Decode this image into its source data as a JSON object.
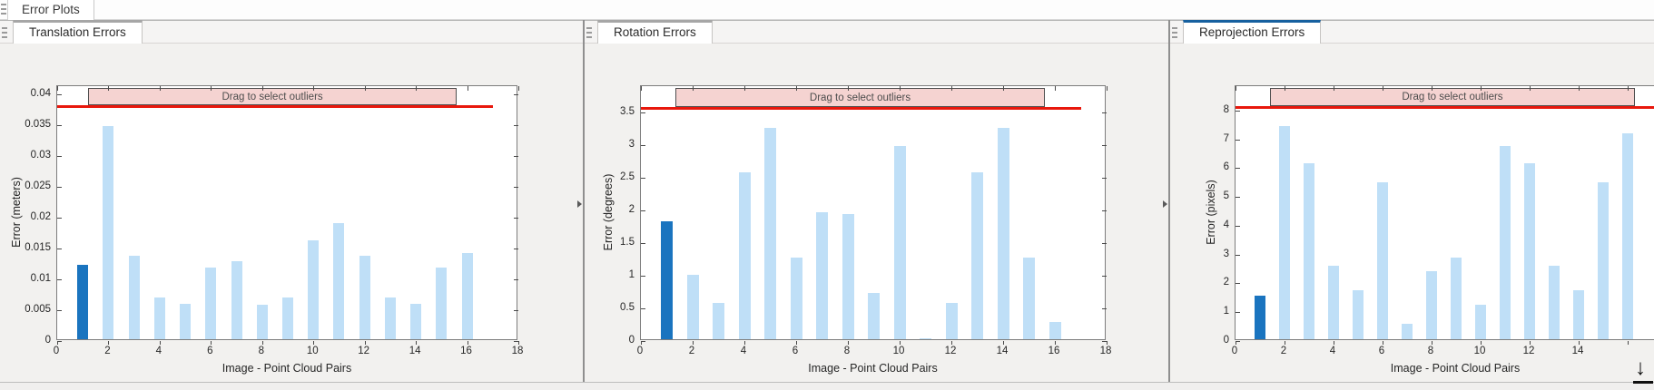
{
  "app_tab_bar": {
    "tab": "Error Plots"
  },
  "colors": {
    "bar": "#bfdff7",
    "bar_selected": "#1a74bf",
    "threshold_line": "#e8170c",
    "banner_fill": "#f5d3d1",
    "banner_border": "#4f4f4f",
    "active_tab_accent": "#16609f",
    "inactive_tab_accent": "#a6a6a6"
  },
  "export_icon": {
    "glyph": "↓"
  },
  "panels": [
    {
      "tab": "Translation Errors",
      "active": false,
      "chart_data": {
        "type": "bar",
        "xlabel": "Image - Point Cloud Pairs",
        "ylabel": "Error (meters)",
        "xlim": [
          0,
          18
        ],
        "ylim": [
          0,
          0.0413
        ],
        "x": [
          1,
          2,
          3,
          4,
          5,
          6,
          7,
          8,
          9,
          10,
          11,
          12,
          13,
          14,
          15,
          16
        ],
        "values": [
          0.0121,
          0.0346,
          0.0135,
          0.0067,
          0.0058,
          0.0116,
          0.0126,
          0.0056,
          0.0068,
          0.016,
          0.0188,
          0.0135,
          0.0067,
          0.0058,
          0.0116,
          0.014
        ],
        "selected_index": 0,
        "xticks": [
          0,
          2,
          4,
          6,
          8,
          10,
          12,
          14,
          16,
          18
        ],
        "xtick_labels": [
          "0",
          "2",
          "4",
          "6",
          "8",
          "10",
          "12",
          "14",
          "16",
          "18"
        ],
        "yticks": [
          0,
          0.005,
          0.01,
          0.015,
          0.02,
          0.025,
          0.03,
          0.035,
          0.04
        ],
        "ytick_labels": [
          "0",
          "0.005",
          "0.01",
          "0.015",
          "0.02",
          "0.025",
          "0.03",
          "0.035",
          "0.04"
        ],
        "threshold": {
          "value": 0.038,
          "x_start": 0,
          "x_end": 17.0
        },
        "banner": {
          "label": "Drag to select outliers",
          "x_start": 1.2,
          "x_end": 15.6
        }
      }
    },
    {
      "tab": "Rotation Errors",
      "active": false,
      "chart_data": {
        "type": "bar",
        "xlabel": "Image - Point Cloud Pairs",
        "ylabel": "Error (degrees)",
        "xlim": [
          0,
          18
        ],
        "ylim": [
          0,
          3.9
        ],
        "x": [
          1,
          2,
          3,
          4,
          5,
          6,
          7,
          8,
          9,
          10,
          11,
          12,
          13,
          14,
          15,
          16
        ],
        "values": [
          1.8,
          0.98,
          0.56,
          2.56,
          3.23,
          1.25,
          1.95,
          1.92,
          0.71,
          2.96,
          0.02,
          0.56,
          2.56,
          3.23,
          1.25,
          0.26
        ],
        "selected_index": 0,
        "xticks": [
          0,
          2,
          4,
          6,
          8,
          10,
          12,
          14,
          16,
          18
        ],
        "xtick_labels": [
          "0",
          "2",
          "4",
          "6",
          "8",
          "10",
          "12",
          "14",
          "16",
          "18"
        ],
        "yticks": [
          0,
          0.5,
          1,
          1.5,
          2,
          2.5,
          3,
          3.5
        ],
        "ytick_labels": [
          "0",
          "0.5",
          "1",
          "1.5",
          "2",
          "2.5",
          "3",
          "3.5"
        ],
        "threshold": {
          "value": 3.56,
          "x_start": 0,
          "x_end": 17.0
        },
        "banner": {
          "label": "Drag to select outliers",
          "x_start": 1.35,
          "x_end": 15.6
        }
      }
    },
    {
      "tab": "Reprojection Errors",
      "active": true,
      "chart_data": {
        "type": "bar",
        "xlabel": "Image - Point Cloud Pairs",
        "ylabel": "Error (pixels)",
        "xlim": [
          0,
          18
        ],
        "ylim": [
          0,
          8.85
        ],
        "x": [
          1,
          2,
          3,
          4,
          5,
          6,
          7,
          8,
          9,
          10,
          11,
          12,
          13,
          14,
          15,
          16
        ],
        "values": [
          1.5,
          7.4,
          6.1,
          2.55,
          1.7,
          5.45,
          0.55,
          2.35,
          2.85,
          1.2,
          6.7,
          6.1,
          2.55,
          1.7,
          5.45,
          7.15
        ],
        "selected_index": 0,
        "xticks": [
          0,
          2,
          4,
          6,
          8,
          10,
          12,
          14,
          16
        ],
        "xtick_labels": [
          "0",
          "2",
          "4",
          "6",
          "8",
          "10",
          "12",
          "14",
          ""
        ],
        "yticks": [
          0,
          1,
          2,
          3,
          4,
          5,
          6,
          7,
          8
        ],
        "ytick_labels": [
          "0",
          "1",
          "2",
          "3",
          "4",
          "5",
          "6",
          "7",
          "8"
        ],
        "threshold": {
          "value": 8.12,
          "x_start": 0,
          "x_end": 18
        },
        "banner": {
          "label": "Drag to select outliers",
          "x_start": 1.4,
          "x_end": 16.3
        }
      }
    }
  ]
}
